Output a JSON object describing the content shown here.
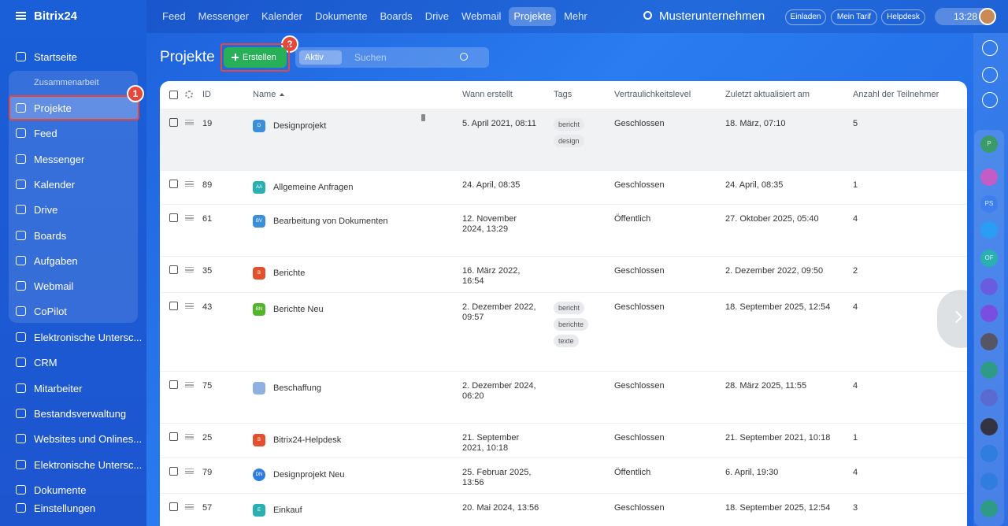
{
  "logo": "Bitrix24",
  "top_nav": [
    "Feed",
    "Messenger",
    "Kalender",
    "Dokumente",
    "Boards",
    "Drive",
    "Webmail",
    "Projekte",
    "Mehr"
  ],
  "company": "Musterunternehmen",
  "top_buttons": [
    "Einladen",
    "Mein Tarif",
    "Helpdesk"
  ],
  "time": "13:28",
  "sidebar": {
    "start": "Startseite",
    "group_label": "Zusammenarbeit",
    "group_items": [
      "Projekte",
      "Feed",
      "Messenger",
      "Kalender",
      "Drive",
      "Boards",
      "Aufgaben",
      "Webmail",
      "CoPilot"
    ],
    "items": [
      "Elektronische Untersc...",
      "CRM",
      "Mitarbeiter",
      "Bestandsverwaltung",
      "Websites und Onlines...",
      "Elektronische Untersc...",
      "Dokumente"
    ],
    "settings": "Einstellungen"
  },
  "badges": [
    "1",
    "2"
  ],
  "page_title": "Projekte",
  "create_button": "Erstellen",
  "filter": {
    "tag": "Aktiv",
    "placeholder": "Suchen"
  },
  "right_rail": [
    "P",
    "PS",
    "OF"
  ],
  "table": {
    "headers": [
      "ID",
      "Name",
      "Wann erstellt",
      "Tags",
      "Vertraulichkeitslevel",
      "Zuletzt aktualisiert am",
      "Anzahl der Teilnehmer"
    ],
    "rows": [
      {
        "id": "19",
        "icon": "D",
        "name": "Designprojekt",
        "created": "5. April 2021, 08:11",
        "tags": [
          "bericht",
          "design"
        ],
        "privacy": "Geschlossen",
        "updated": "18. März, 07:10",
        "members": "5"
      },
      {
        "id": "89",
        "icon": "AA",
        "name": "Allgemeine Anfragen",
        "created": "24. April, 08:35",
        "tags": [],
        "privacy": "Geschlossen",
        "updated": "24. April, 08:35",
        "members": "1"
      },
      {
        "id": "61",
        "icon": "BV",
        "name": "Bearbeitung von Dokumenten",
        "created": "12. November 2024, 13:29",
        "tags": [],
        "privacy": "Öffentlich",
        "updated": "27. Oktober 2025, 05:40",
        "members": "4"
      },
      {
        "id": "35",
        "icon": "B",
        "name": "Berichte",
        "created": "16. März 2022, 16:54",
        "tags": [],
        "privacy": "Geschlossen",
        "updated": "2. Dezember 2022, 09:50",
        "members": "2"
      },
      {
        "id": "43",
        "icon": "BN",
        "name": "Berichte Neu",
        "created": "2. Dezember 2022, 09:57",
        "tags": [
          "bericht",
          "berichte",
          "texte"
        ],
        "privacy": "Geschlossen",
        "updated": "18. September 2025, 12:54",
        "members": "4"
      },
      {
        "id": "75",
        "name": "Beschaffung",
        "created": "2. Dezember 2024, 06:20",
        "tags": [],
        "privacy": "Geschlossen",
        "updated": "28. März 2025, 11:55",
        "members": "4"
      },
      {
        "id": "25",
        "icon": "B",
        "name": "Bitrix24-Helpdesk",
        "created": "21. September 2021, 10:18",
        "tags": [],
        "privacy": "Geschlossen",
        "updated": "21. September 2021, 10:18",
        "members": "1"
      },
      {
        "id": "79",
        "icon": "DN",
        "name": "Designprojekt Neu",
        "created": "25. Februar 2025, 13:56",
        "tags": [],
        "privacy": "Öffentlich",
        "updated": "6. April, 19:30",
        "members": "4"
      },
      {
        "id": "57",
        "icon": "E",
        "name": "Einkauf",
        "created": "20. Mai 2024, 13:56",
        "tags": [],
        "privacy": "Geschlossen",
        "updated": "18. September 2025, 12:54",
        "members": "3"
      }
    ]
  }
}
